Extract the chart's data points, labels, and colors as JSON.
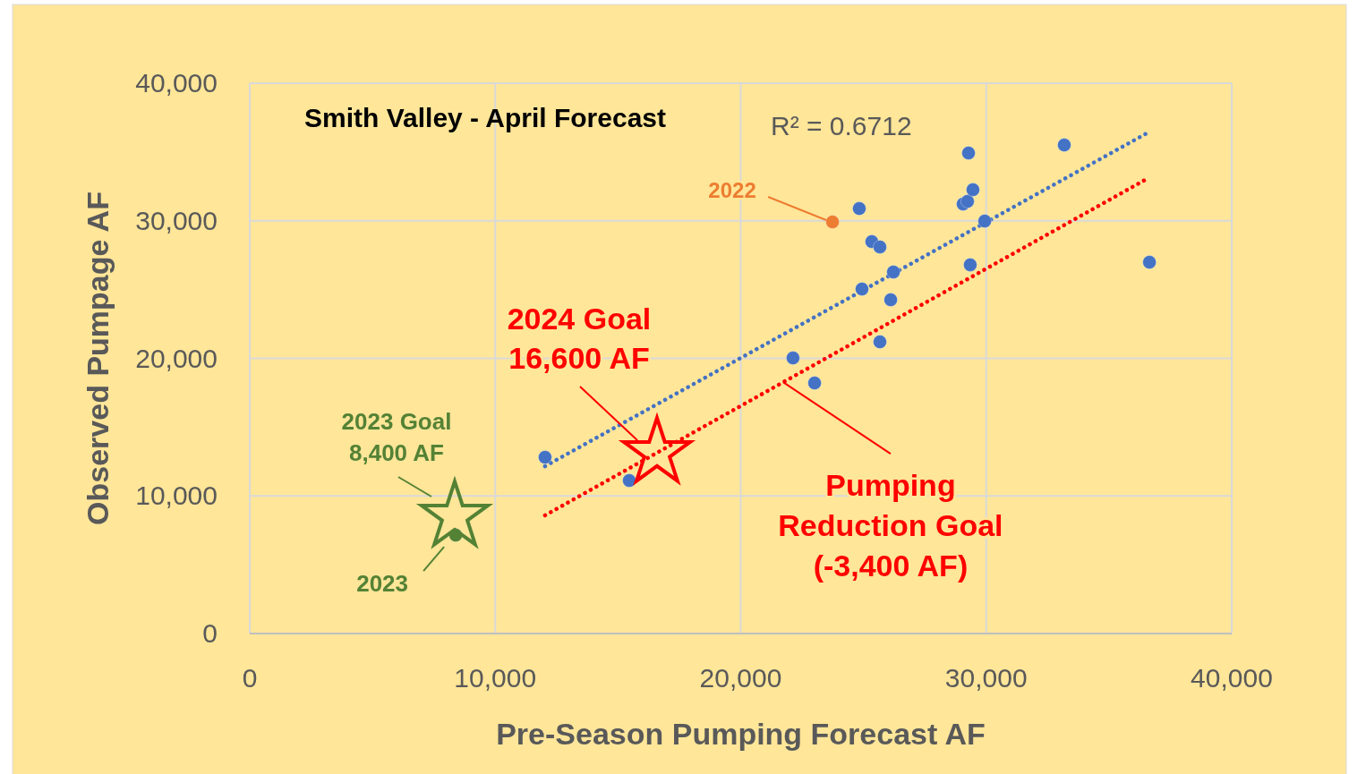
{
  "chart_data": {
    "type": "scatter",
    "title": "Smith Valley - April Forecast",
    "xlabel": "Pre-Season Pumping Forecast AF",
    "ylabel": "Observed Pumpage AF",
    "xlim": [
      0,
      40000
    ],
    "ylim": [
      0,
      40000
    ],
    "xticks": [
      0,
      {
        "value": 10000,
        "label": "10,000"
      },
      {
        "value": 20000,
        "label": "20,000"
      },
      {
        "value": 30000,
        "label": "30,000"
      },
      {
        "value": 40000,
        "label": "40,000"
      }
    ],
    "yticks": [
      0,
      {
        "value": 10000,
        "label": "10,000"
      },
      {
        "value": 20000,
        "label": "20,000"
      },
      {
        "value": 30000,
        "label": "30,000"
      },
      {
        "value": 40000,
        "label": "40,000"
      }
    ],
    "grid": true,
    "marker": "circle",
    "series": [
      {
        "type": "line",
        "color": "#4472c4",
        "line_style": "dotted",
        "marker": "none",
        "x": [
          12030,
          36540
        ],
        "values": [
          12160,
          36360
        ]
      },
      {
        "type": "line",
        "color": "#ff0000",
        "line_style": "dotted",
        "marker": "none",
        "x": [
          12030,
          36540
        ],
        "values": [
          8590,
          33040
        ]
      },
      {
        "color": "#4472c4",
        "x": [
          12030,
          15460,
          22130,
          23010,
          24830,
          24940,
          25340,
          25670,
          25670,
          26110,
          26220,
          29060,
          29240,
          29280,
          29460,
          29350,
          29940,
          33180,
          36650
        ],
        "values": [
          12810,
          11120,
          20030,
          18210,
          30890,
          25040,
          28490,
          28100,
          21200,
          24260,
          26280,
          31220,
          31410,
          34930,
          32260,
          26800,
          29980,
          35510,
          26990
        ]
      },
      {
        "color": "#ed7d31",
        "x": [
          23740
        ],
        "values": [
          29920
        ]
      },
      {
        "color": "#548235",
        "x": [
          8390
        ],
        "values": [
          7150
        ]
      },
      {
        "color": "#548235",
        "marker": "star",
        "x": [
          8350
        ],
        "values": [
          8520
        ]
      },
      {
        "color": "#ff0000",
        "marker": "star",
        "x": [
          16590
        ],
        "values": [
          13140
        ]
      }
    ],
    "annotations": [
      "R² = 0.6712",
      {
        "text": "2022",
        "x": 23740,
        "y": 29920
      },
      {
        "text": "2023 Goal\n8,400 AF",
        "x": 8350,
        "y": 8520
      },
      {
        "text": "2023",
        "x": 8390,
        "y": 7150
      },
      {
        "text": "2024 Goal\n16,600 AF",
        "x": 16590,
        "y": 13140
      },
      {
        "text": "Pumping\nReduction Goal\n(-3,400 AF)",
        "x": 21730,
        "y": 18270
      }
    ]
  }
}
